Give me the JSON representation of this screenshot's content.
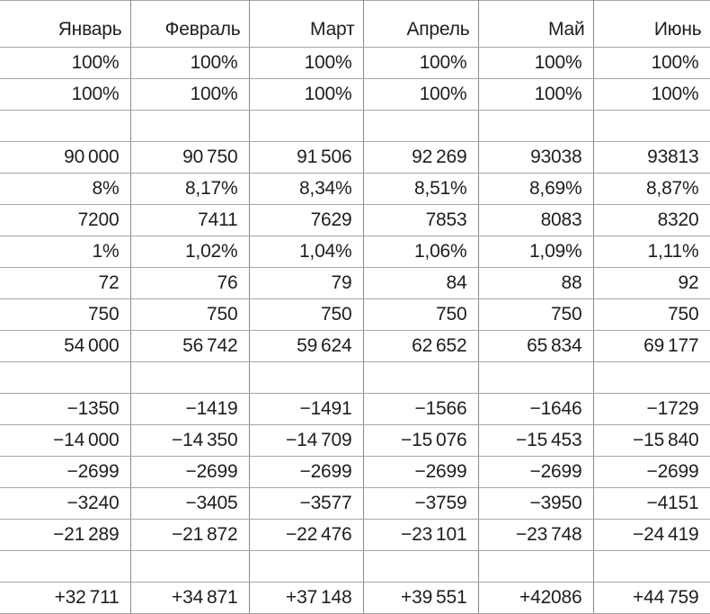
{
  "table": {
    "columns": [
      "Январь",
      "Февраль",
      "Март",
      "Апрель",
      "Май",
      "Июнь"
    ],
    "rows": [
      [
        "100%",
        "100%",
        "100%",
        "100%",
        "100%",
        "100%"
      ],
      [
        "100%",
        "100%",
        "100%",
        "100%",
        "100%",
        "100%"
      ],
      [
        "",
        "",
        "",
        "",
        "",
        ""
      ],
      [
        "90 000",
        "90 750",
        "91 506",
        "92 269",
        "93038",
        "93813"
      ],
      [
        "8%",
        "8,17%",
        "8,34%",
        "8,51%",
        "8,69%",
        "8,87%"
      ],
      [
        "7200",
        "7411",
        "7629",
        "7853",
        "8083",
        "8320"
      ],
      [
        "1%",
        "1,02%",
        "1,04%",
        "1,06%",
        "1,09%",
        "1,11%"
      ],
      [
        "72",
        "76",
        "79",
        "84",
        "88",
        "92"
      ],
      [
        "750",
        "750",
        "750",
        "750",
        "750",
        "750"
      ],
      [
        "54 000",
        "56 742",
        "59 624",
        "62 652",
        "65 834",
        "69 177"
      ],
      [
        "",
        "",
        "",
        "",
        "",
        ""
      ],
      [
        "−1350",
        "−1419",
        "−1491",
        "−1566",
        "−1646",
        "−1729"
      ],
      [
        "−14 000",
        "−14 350",
        "−14 709",
        "−15 076",
        "−15 453",
        "−15 840"
      ],
      [
        "−2699",
        "−2699",
        "−2699",
        "−2699",
        "−2699",
        "−2699"
      ],
      [
        "−3240",
        "−3405",
        "−3577",
        "−3759",
        "−3950",
        "−4151"
      ],
      [
        "−21 289",
        "−21 872",
        "−22 476",
        "−23 101",
        "−23 748",
        "−24 419"
      ],
      [
        "",
        "",
        "",
        "",
        "",
        ""
      ],
      [
        "+32 711",
        "+34 871",
        "+37 148",
        "+39 551",
        "+42086",
        "+44 759"
      ]
    ]
  },
  "colors": {
    "background": "#ffffff",
    "text": "#1e1e1e",
    "grid_horizontal": "#a6a6a6",
    "grid_vertical": "#8a8a8a"
  }
}
